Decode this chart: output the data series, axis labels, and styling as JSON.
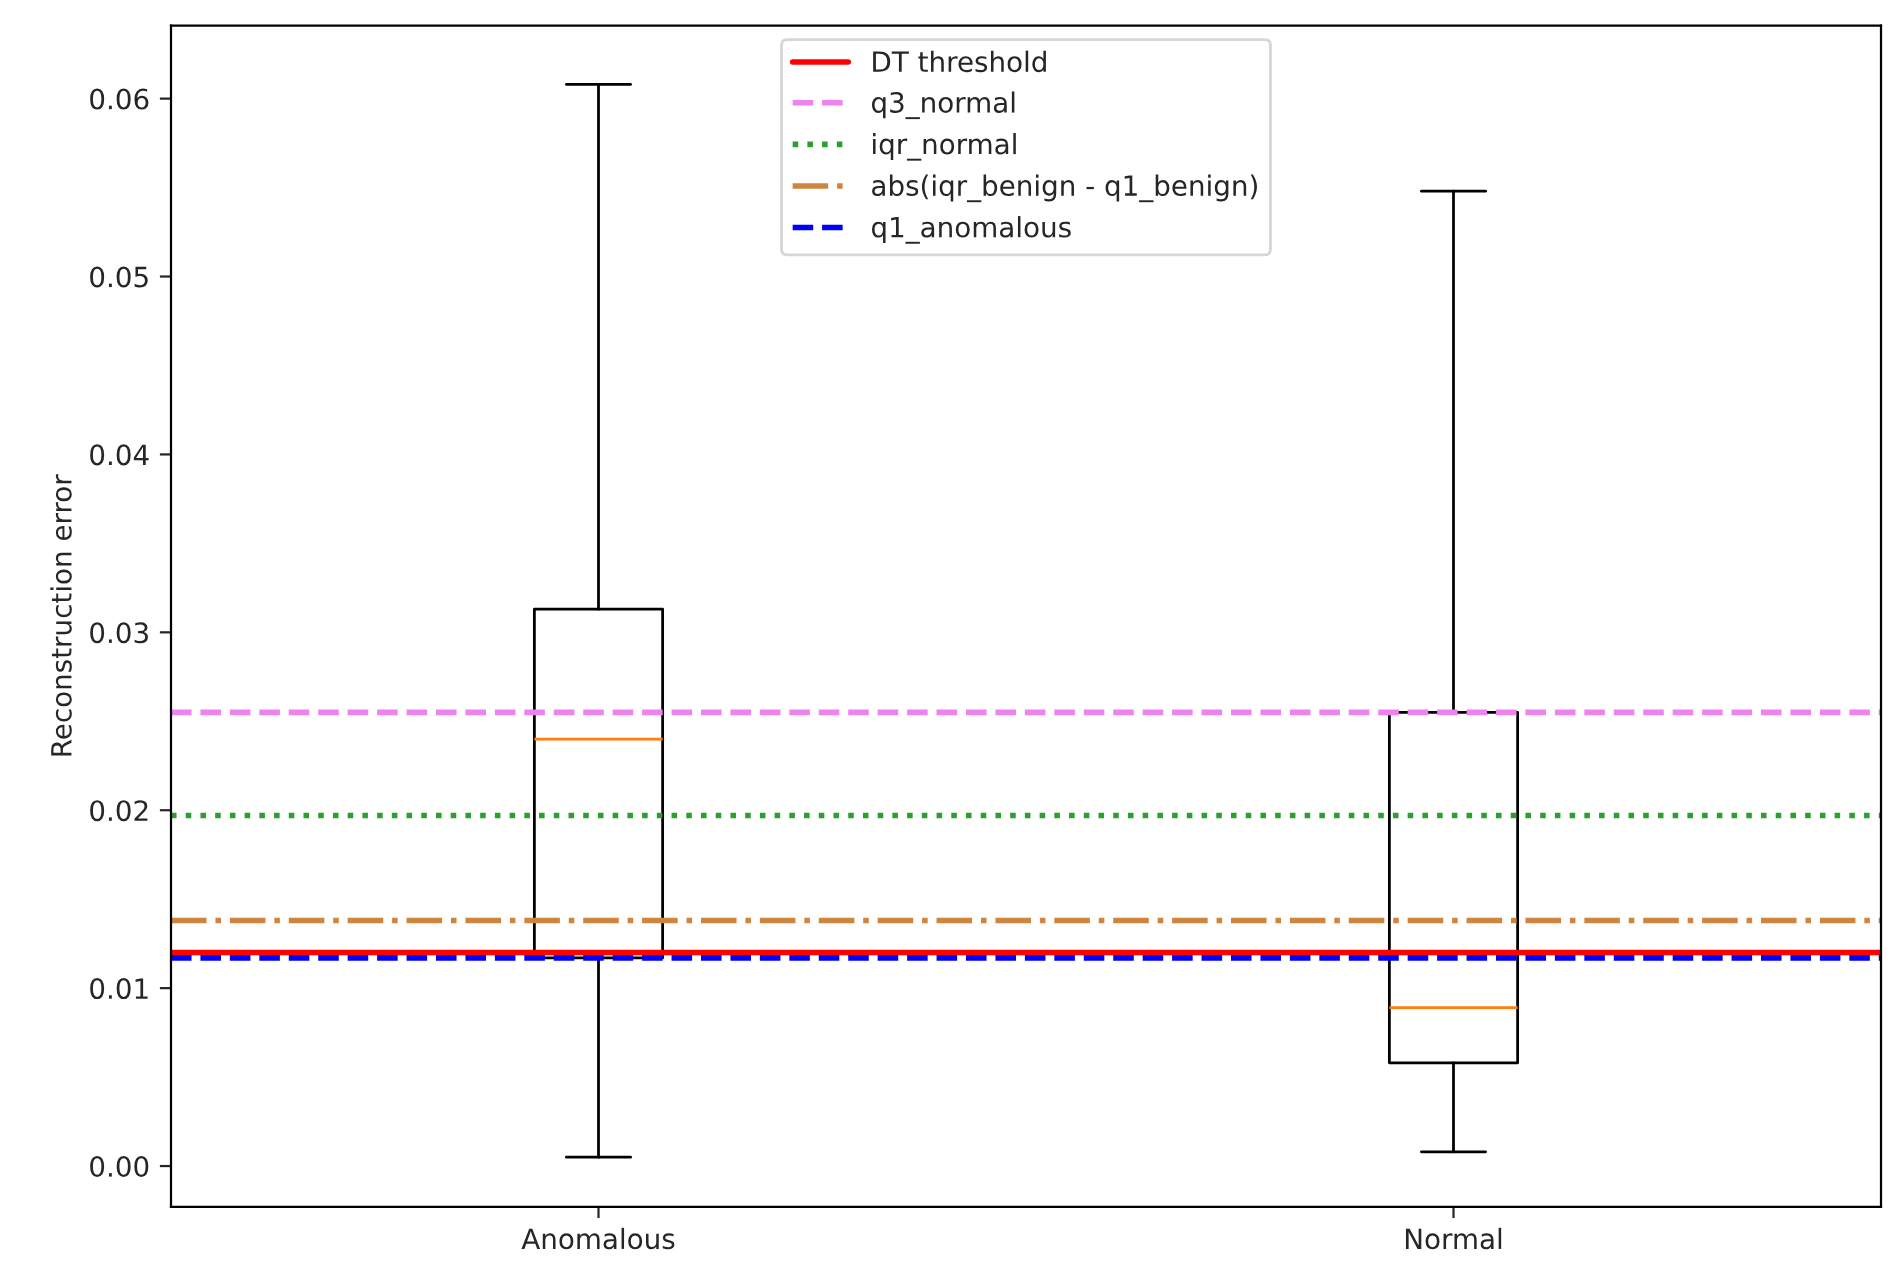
{
  "chart_data": {
    "type": "box",
    "ylabel": "Reconstruction error",
    "categories": [
      "Anomalous",
      "Normal"
    ],
    "boxes": [
      {
        "low": 0.0005,
        "q1": 0.0117,
        "median": 0.024,
        "q3": 0.0313,
        "high": 0.0608
      },
      {
        "low": 0.0008,
        "q1": 0.0058,
        "median": 0.0089,
        "q3": 0.0255,
        "high": 0.0548
      }
    ],
    "ylim": [
      -0.0023,
      0.0641
    ],
    "yticks": [
      {
        "value": 0,
        "label": "0.00"
      },
      {
        "value": 0.01,
        "label": "0.01"
      },
      {
        "value": 0.02,
        "label": "0.02"
      },
      {
        "value": 0.03,
        "label": "0.03"
      },
      {
        "value": 0.04,
        "label": "0.04"
      },
      {
        "value": 0.05,
        "label": "0.05"
      },
      {
        "value": 0.06,
        "label": "0.06"
      }
    ],
    "ref_lines": [
      {
        "axis": "y",
        "value": 0.012,
        "label": "DT threshold",
        "color": "#ff0000",
        "line_style": "solid"
      },
      {
        "axis": "y",
        "value": 0.0255,
        "label": "q3_normal",
        "color": "#ee82ee",
        "line_style": "dashed"
      },
      {
        "axis": "y",
        "value": 0.0197,
        "label": "iqr_normal",
        "color": "#2ca02c",
        "line_style": "dotted"
      },
      {
        "axis": "y",
        "value": 0.0138,
        "label": "abs(iqr_benign - q1_benign)",
        "color": "#cd853f",
        "line_style": "dashdot"
      },
      {
        "axis": "y",
        "value": 0.0117,
        "label": "q1_anomalous",
        "color": "#0000ff",
        "line_style": "dashed"
      }
    ],
    "legend": "top",
    "grid": false
  }
}
